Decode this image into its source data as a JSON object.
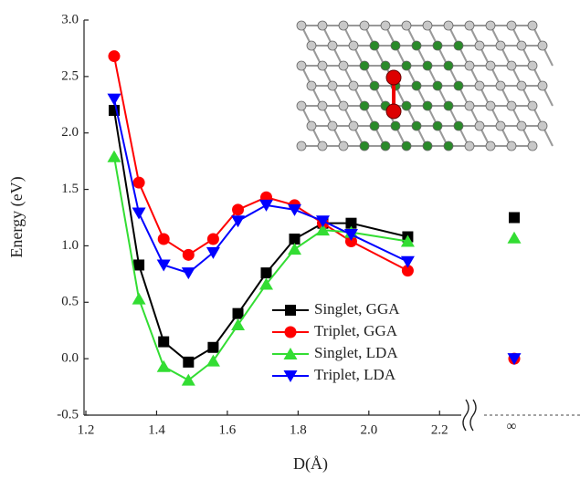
{
  "chart_data": {
    "type": "line",
    "x_label": "D(Å)",
    "y_label": "Energy (eV)",
    "x": [
      1.28,
      1.35,
      1.42,
      1.49,
      1.56,
      1.63,
      1.71,
      1.79,
      1.87,
      1.95,
      2.11
    ],
    "series": [
      {
        "name": "Singlet, GGA",
        "color": "#000000",
        "marker": "square",
        "values": [
          2.2,
          0.83,
          0.15,
          -0.03,
          0.1,
          0.4,
          0.76,
          1.06,
          1.2,
          1.2,
          1.08
        ],
        "inf_value": 1.25
      },
      {
        "name": "Triplet, GGA",
        "color": "#ff0000",
        "marker": "circle",
        "values": [
          2.68,
          1.56,
          1.06,
          0.92,
          1.06,
          1.32,
          1.43,
          1.36,
          1.2,
          1.04,
          0.78
        ],
        "inf_value": 0.0
      },
      {
        "name": "Singlet, LDA",
        "color": "#33dd33",
        "marker": "triangle-up",
        "values": [
          1.79,
          0.53,
          -0.07,
          -0.19,
          -0.02,
          0.3,
          0.66,
          0.97,
          1.14,
          1.12,
          1.04
        ],
        "inf_value": 1.07
      },
      {
        "name": "Triplet, LDA",
        "color": "#0000ff",
        "marker": "triangle-down",
        "values": [
          2.3,
          1.29,
          0.83,
          0.76,
          0.94,
          1.22,
          1.36,
          1.32,
          1.22,
          1.1,
          0.86
        ],
        "inf_value": 0.0
      }
    ],
    "break_label": "∞",
    "xlim": [
      1.2,
      2.3
    ],
    "xticks": [
      1.2,
      1.4,
      1.6,
      1.8,
      {
        "value": 2.0,
        "label": "2.0"
      },
      2.2
    ],
    "ylim": [
      -0.5,
      3.0
    ],
    "yticks": [
      -0.5,
      {
        "value": 0,
        "label": "0.0"
      },
      0.5,
      {
        "value": 1.0,
        "label": "1.0"
      },
      1.5,
      {
        "value": 2.0,
        "label": "2.0"
      },
      2.5,
      {
        "value": 3.0,
        "label": "3.0"
      }
    ],
    "grid": false
  }
}
